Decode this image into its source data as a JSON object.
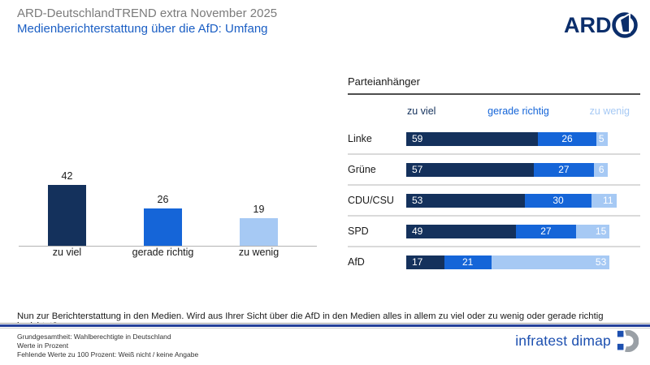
{
  "header": {
    "supertitle": "ARD-DeutschlandTREND extra November 2025",
    "title": "Medienberichterstattung über die AfD: Umfang",
    "ard_logo_text": "ARD"
  },
  "colors": {
    "navy": "#14315c",
    "mid_blue": "#1565d8",
    "light_blue": "#a6c9f4",
    "title_blue": "#1a5ec4",
    "logo_navy": "#003366",
    "infratest_blue": "#1d50b0",
    "infratest_gray": "#9aa0a6"
  },
  "chart_data": [
    {
      "type": "bar",
      "categories": [
        "zu viel",
        "gerade richtig",
        "zu wenig"
      ],
      "values": [
        42,
        26,
        19
      ],
      "unit": "percent",
      "ylim": [
        0,
        50
      ],
      "grid": false
    },
    {
      "type": "bar",
      "stacked": true,
      "orientation": "horizontal",
      "title": "Parteianhänger",
      "categories": [
        "Linke",
        "Grüne",
        "CDU/CSU",
        "SPD",
        "AfD"
      ],
      "series": [
        {
          "name": "zu viel",
          "values": [
            59,
            57,
            53,
            49,
            17
          ]
        },
        {
          "name": "gerade richtig",
          "values": [
            26,
            27,
            30,
            27,
            21
          ]
        },
        {
          "name": "zu wenig",
          "values": [
            5,
            6,
            11,
            15,
            53
          ]
        }
      ],
      "xlim": [
        0,
        100
      ],
      "legend_position": "top"
    }
  ],
  "question": "Nun zur Berichterstattung in den Medien. Wird aus Ihrer Sicht über die AfD in den Medien alles in allem zu viel oder zu wenig oder gerade richtig berichtet?",
  "footer": {
    "lines": [
      "Grundgesamtheit: Wahlberechtigte in Deutschland",
      "Werte in Prozent",
      "Fehlende Werte zu 100 Prozent: Weiß nicht / keine Angabe"
    ],
    "brand": "infratest dimap"
  }
}
